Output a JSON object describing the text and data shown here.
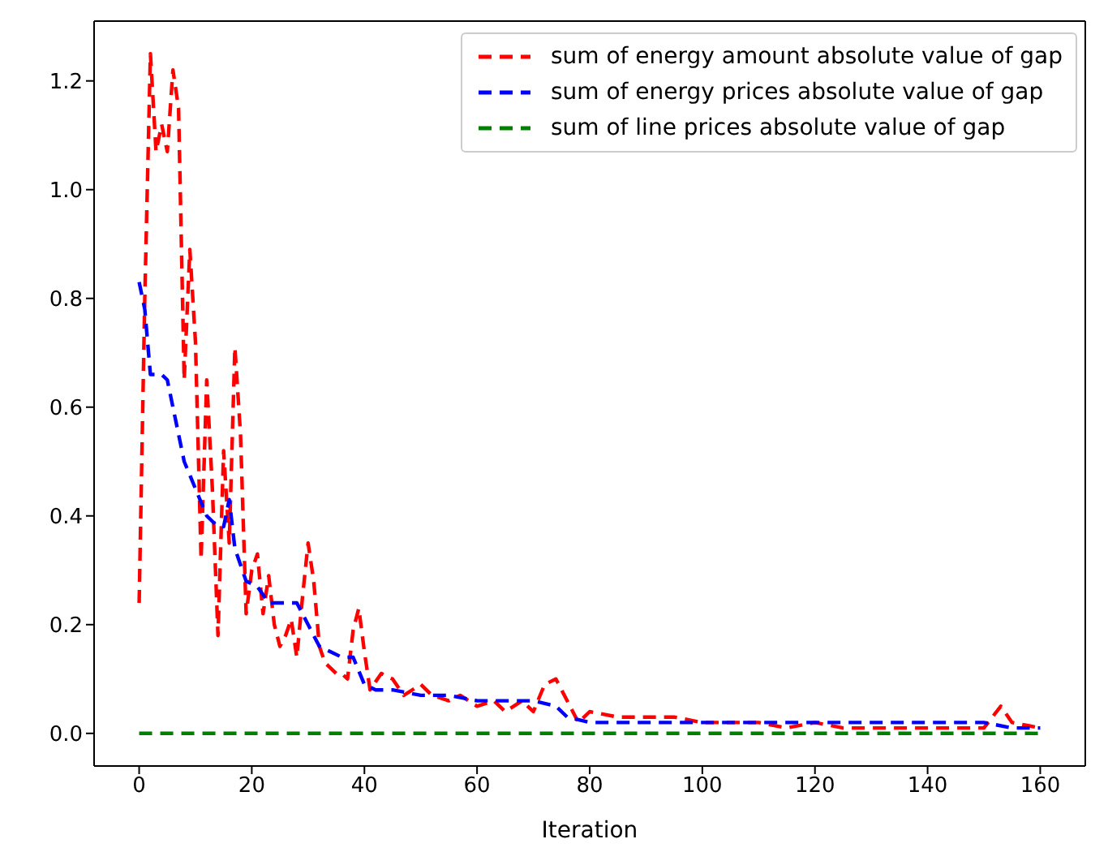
{
  "chart_data": {
    "type": "line",
    "xlabel": "Iteration",
    "xlim": [
      -8,
      168
    ],
    "xticks": [
      0,
      20,
      40,
      60,
      80,
      100,
      120,
      140,
      160
    ],
    "ylim": [
      -0.06,
      1.31
    ],
    "yticks": [
      {
        "value": 0,
        "label": "0.0"
      },
      {
        "value": 0.2,
        "label": "0.2"
      },
      {
        "value": 0.4,
        "label": "0.4"
      },
      {
        "value": 0.6,
        "label": "0.6"
      },
      {
        "value": 0.8,
        "label": "0.8"
      },
      {
        "value": 1.0,
        "label": "1.0"
      },
      {
        "value": 1.2,
        "label": "1.2"
      }
    ],
    "legend": "top right",
    "line_style": "dashed",
    "marker": "none",
    "series": [
      {
        "name": "sum of energy amount absolute value of gap",
        "color": "#ff0000",
        "x": [
          0,
          1,
          2,
          3,
          4,
          5,
          6,
          7,
          8,
          9,
          10,
          11,
          12,
          13,
          14,
          15,
          16,
          17,
          18,
          19,
          20,
          21,
          22,
          23,
          24,
          25,
          26,
          27,
          28,
          29,
          30,
          31,
          32,
          33,
          34,
          35,
          36,
          37,
          38,
          39,
          40,
          41,
          43,
          45,
          47,
          50,
          52,
          55,
          57,
          60,
          63,
          65,
          68,
          70,
          72,
          74,
          76,
          78,
          80,
          85,
          90,
          95,
          100,
          105,
          110,
          115,
          120,
          125,
          130,
          135,
          140,
          145,
          150,
          153,
          155,
          160
        ],
        "values": [
          0.24,
          0.8,
          1.25,
          1.07,
          1.12,
          1.07,
          1.22,
          1.15,
          0.65,
          0.89,
          0.72,
          0.32,
          0.65,
          0.45,
          0.18,
          0.52,
          0.35,
          0.71,
          0.55,
          0.22,
          0.3,
          0.33,
          0.22,
          0.29,
          0.2,
          0.16,
          0.18,
          0.21,
          0.14,
          0.25,
          0.35,
          0.28,
          0.16,
          0.13,
          0.12,
          0.11,
          0.11,
          0.1,
          0.19,
          0.23,
          0.15,
          0.08,
          0.11,
          0.1,
          0.07,
          0.09,
          0.07,
          0.06,
          0.07,
          0.05,
          0.06,
          0.04,
          0.06,
          0.04,
          0.09,
          0.1,
          0.06,
          0.02,
          0.04,
          0.03,
          0.03,
          0.03,
          0.02,
          0.02,
          0.02,
          0.01,
          0.02,
          0.01,
          0.01,
          0.01,
          0.01,
          0.01,
          0.01,
          0.05,
          0.02,
          0.01
        ]
      },
      {
        "name": "sum of energy prices absolute value of gap",
        "color": "#0000ff",
        "x": [
          0,
          1,
          2,
          4,
          5,
          8,
          10,
          12,
          14,
          15,
          16,
          17,
          19,
          21,
          23,
          25,
          28,
          30,
          32,
          34,
          36,
          38,
          40,
          42,
          45,
          50,
          55,
          60,
          65,
          70,
          74,
          76,
          80,
          90,
          100,
          110,
          120,
          140,
          150,
          155,
          160
        ],
        "values": [
          0.83,
          0.78,
          0.66,
          0.66,
          0.65,
          0.5,
          0.45,
          0.4,
          0.38,
          0.38,
          0.43,
          0.34,
          0.28,
          0.27,
          0.24,
          0.24,
          0.24,
          0.2,
          0.16,
          0.15,
          0.14,
          0.14,
          0.09,
          0.08,
          0.08,
          0.07,
          0.07,
          0.06,
          0.06,
          0.06,
          0.05,
          0.03,
          0.02,
          0.02,
          0.02,
          0.02,
          0.02,
          0.02,
          0.02,
          0.01,
          0.01
        ]
      },
      {
        "name": "sum of line prices absolute value of gap",
        "color": "#008000",
        "x": [
          0,
          160
        ],
        "values": [
          0,
          0
        ]
      }
    ]
  }
}
